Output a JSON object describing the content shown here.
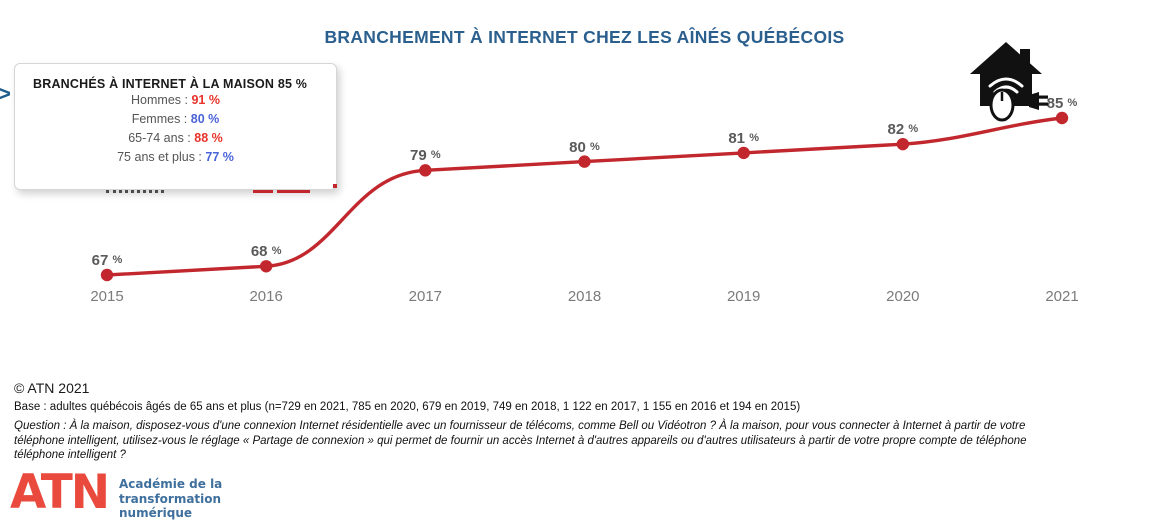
{
  "title": "BRANCHEMENT À INTERNET CHEZ LES AÎNÉS QUÉBÉCOIS",
  "colors": {
    "title_blue": "#2b5f8e",
    "line_red": "#c1272d",
    "value_red": "#e8332a",
    "value_blue": "#4a63d8",
    "label_gray": "#5a5a5a",
    "logo_red": "#ea4a3d",
    "logo_blue": "#3f6f9d"
  },
  "nav": {
    "next_chevron": ">"
  },
  "callout": {
    "title": "BRANCHÉS À INTERNET À LA MAISON 85 %",
    "rows": [
      {
        "label": "Hommes :",
        "value": "91 %",
        "value_color": "#e8332a"
      },
      {
        "label": "Femmes :",
        "value": "80 %",
        "value_color": "#4a63d8"
      },
      {
        "label": "65-74 ans :",
        "value": "88 %",
        "value_color": "#e8332a"
      },
      {
        "label": "75 ans et plus :",
        "value": "77 %",
        "value_color": "#4a63d8"
      }
    ]
  },
  "icons": {
    "composite": "house-with-wifi-mouse-and-plug-icon",
    "parts": [
      "house-icon",
      "wifi-icon",
      "computer-mouse-icon",
      "power-plug-icon"
    ]
  },
  "chart_data": {
    "type": "line",
    "title": "BRANCHEMENT À INTERNET CHEZ LES AÎNÉS QUÉBÉCOIS",
    "categories": [
      "2015",
      "2016",
      "2017",
      "2018",
      "2019",
      "2020",
      "2021"
    ],
    "series": [
      {
        "name": "Branchés à Internet à la maison",
        "values": [
          67,
          68,
          79,
          80,
          81,
          82,
          85
        ]
      }
    ],
    "point_labels": [
      "67 %",
      "68 %",
      "79 %",
      "80 %",
      "81 %",
      "82 %",
      "85 %"
    ],
    "unit": "%",
    "xlabel": "",
    "ylabel": "",
    "ylim": [
      60,
      92
    ],
    "grid": false,
    "legend": false,
    "line_color": "#c1272d",
    "marker": "filled-circle"
  },
  "footer": {
    "copyright": "© ATN 2021",
    "base": "Base : adultes québécois âgés de 65 ans et plus (n=729 en 2021, 785 en 2020, 679 en 2019, 749 en 2018, 1 122 en 2017, 1 155 en 2016 et 194 en 2015)",
    "question_lines": [
      "Question : À la maison, disposez-vous d'une connexion Internet résidentielle avec un fournisseur de télécoms, comme Bell ou Vidéotron ? À la maison, pour vous connecter à Internet à partir de votre",
      "téléphone intelligent, utilisez-vous le réglage « Partage de connexion » qui permet de fournir un accès Internet à d'autres appareils ou d'autres utilisateurs à partir de votre propre compte de téléphone",
      "téléphone intelligent ?"
    ]
  },
  "logo": {
    "text": "ATN",
    "tagline_lines": [
      "Académie de la",
      "transformation",
      "numérique"
    ]
  }
}
